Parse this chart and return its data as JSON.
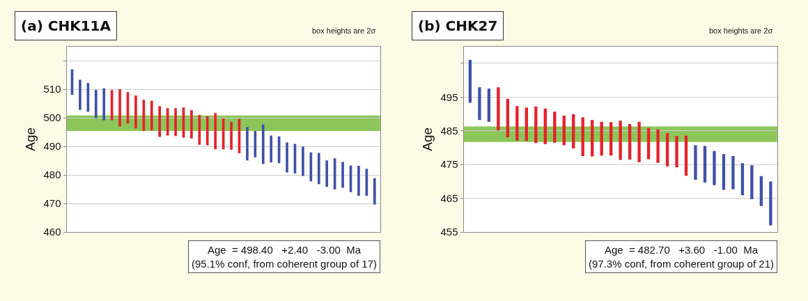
{
  "chart_data": [
    {
      "type": "bar",
      "title": "(a) CHK11A",
      "ylabel": "Age",
      "tick_labels": "y",
      "grid": "y",
      "categories": [
        null,
        null,
        null,
        null,
        null,
        null,
        null,
        null,
        null,
        null,
        null,
        null,
        null,
        null,
        null,
        null,
        null,
        null,
        null,
        null,
        null,
        null,
        null,
        null,
        null,
        null,
        null,
        null,
        null,
        null,
        null,
        null,
        null,
        null,
        null,
        null,
        null,
        null,
        null
      ],
      "base": [
        508.1,
        502.8,
        502.1,
        499.9,
        499.1,
        499.1,
        497.0,
        498.0,
        496.3,
        495.4,
        495.6,
        493.3,
        493.8,
        493.6,
        493.1,
        492.8,
        490.6,
        490.4,
        489.0,
        489.0,
        488.9,
        487.6,
        485.1,
        486.2,
        483.9,
        484.4,
        484.1,
        480.9,
        480.5,
        479.7,
        477.8,
        476.8,
        475.9,
        475.0,
        475.5,
        474.0,
        472.7,
        472.7,
        469.7
      ],
      "values": [
        8.9,
        10.5,
        10.1,
        9.9,
        11.2,
        10.6,
        13.0,
        11.0,
        11.5,
        10.9,
        10.4,
        10.8,
        9.6,
        9.8,
        10.5,
        9.9,
        10.4,
        10.1,
        12.7,
        10.8,
        9.7,
        12.0,
        11.7,
        9.2,
        13.8,
        9.4,
        9.4,
        10.5,
        10.4,
        10.3,
        10.1,
        10.9,
        9.2,
        10.8,
        9.1,
        9.3,
        10.5,
        9.5,
        9.2
      ],
      "colors": [
        "#3f51a8",
        "#3f51a8",
        "#3f51a8",
        "#3f51a8",
        "#3f51a8",
        "#e8202a",
        "#e8202a",
        "#e8202a",
        "#e8202a",
        "#e8202a",
        "#e8202a",
        "#e8202a",
        "#e8202a",
        "#e8202a",
        "#e8202a",
        "#e8202a",
        "#e8202a",
        "#e8202a",
        "#e8202a",
        "#e8202a",
        "#e8202a",
        "#e8202a",
        "#3f51a8",
        "#3f51a8",
        "#3f51a8",
        "#3f51a8",
        "#3f51a8",
        "#3f51a8",
        "#3f51a8",
        "#3f51a8",
        "#3f51a8",
        "#3f51a8",
        "#3f51a8",
        "#3f51a8",
        "#3f51a8",
        "#3f51a8",
        "#3f51a8",
        "#3f51a8",
        "#3f51a8"
      ],
      "ylim": [
        460,
        525
      ],
      "yticks": [
        460,
        470,
        480,
        490,
        500,
        510,
        {
          "value": 520,
          "label": null
        }
      ],
      "bands": [
        {
          "axis": "y",
          "from": 495.4,
          "to": 500.8,
          "color": "#8cc65a"
        }
      ],
      "annotations": [
        "box heights are 2σ",
        "Age  = 498.40   +2.40   -3.00  Ma",
        "(95.1% conf, from coherent group of 17)"
      ]
    },
    {
      "type": "bar",
      "title": "(b) CHK27",
      "ylabel": "Age",
      "tick_labels": "y",
      "grid": "y",
      "categories": [
        null,
        null,
        null,
        null,
        null,
        null,
        null,
        null,
        null,
        null,
        null,
        null,
        null,
        null,
        null,
        null,
        null,
        null,
        null,
        null,
        null,
        null,
        null,
        null,
        null,
        null,
        null,
        null,
        null,
        null,
        null,
        null,
        null
      ],
      "base": [
        493.3,
        488.2,
        487.7,
        485.1,
        483.1,
        482.1,
        482.0,
        481.4,
        481.1,
        481.5,
        480.7,
        479.8,
        477.5,
        477.4,
        477.7,
        477.7,
        476.4,
        476.5,
        475.7,
        476.6,
        475.5,
        474.5,
        474.2,
        471.7,
        470.5,
        469.7,
        468.9,
        467.5,
        467.7,
        465.9,
        464.8,
        462.7,
        457.0
      ],
      "values": [
        12.7,
        9.7,
        9.8,
        12.8,
        11.4,
        10.2,
        9.9,
        10.8,
        10.5,
        9.2,
        8.8,
        10.1,
        11.5,
        10.8,
        10.0,
        9.9,
        11.6,
        10.5,
        12.0,
        9.3,
        9.9,
        9.8,
        9.3,
        11.9,
        10.2,
        10.8,
        10.1,
        10.6,
        9.8,
        9.5,
        10.0,
        8.9,
        13.0
      ],
      "colors": [
        "#3f51a8",
        "#3f51a8",
        "#3f51a8",
        "#e8202a",
        "#e8202a",
        "#e8202a",
        "#e8202a",
        "#e8202a",
        "#e8202a",
        "#e8202a",
        "#e8202a",
        "#e8202a",
        "#e8202a",
        "#e8202a",
        "#e8202a",
        "#e8202a",
        "#e8202a",
        "#e8202a",
        "#e8202a",
        "#e8202a",
        "#e8202a",
        "#e8202a",
        "#e8202a",
        "#e8202a",
        "#3f51a8",
        "#3f51a8",
        "#3f51a8",
        "#3f51a8",
        "#3f51a8",
        "#3f51a8",
        "#3f51a8",
        "#3f51a8",
        "#3f51a8"
      ],
      "ylim": [
        455,
        510
      ],
      "yticks": [
        455,
        465,
        475,
        485,
        495,
        {
          "value": 505,
          "label": null
        }
      ],
      "bands": [
        {
          "axis": "y",
          "from": 481.7,
          "to": 486.3,
          "color": "#8cc65a"
        }
      ],
      "annotations": [
        "box heights are 2σ",
        "Age  = 482.70   +3.60   -1.00  Ma",
        "(97.3% conf, from coherent group of 21)"
      ]
    }
  ]
}
